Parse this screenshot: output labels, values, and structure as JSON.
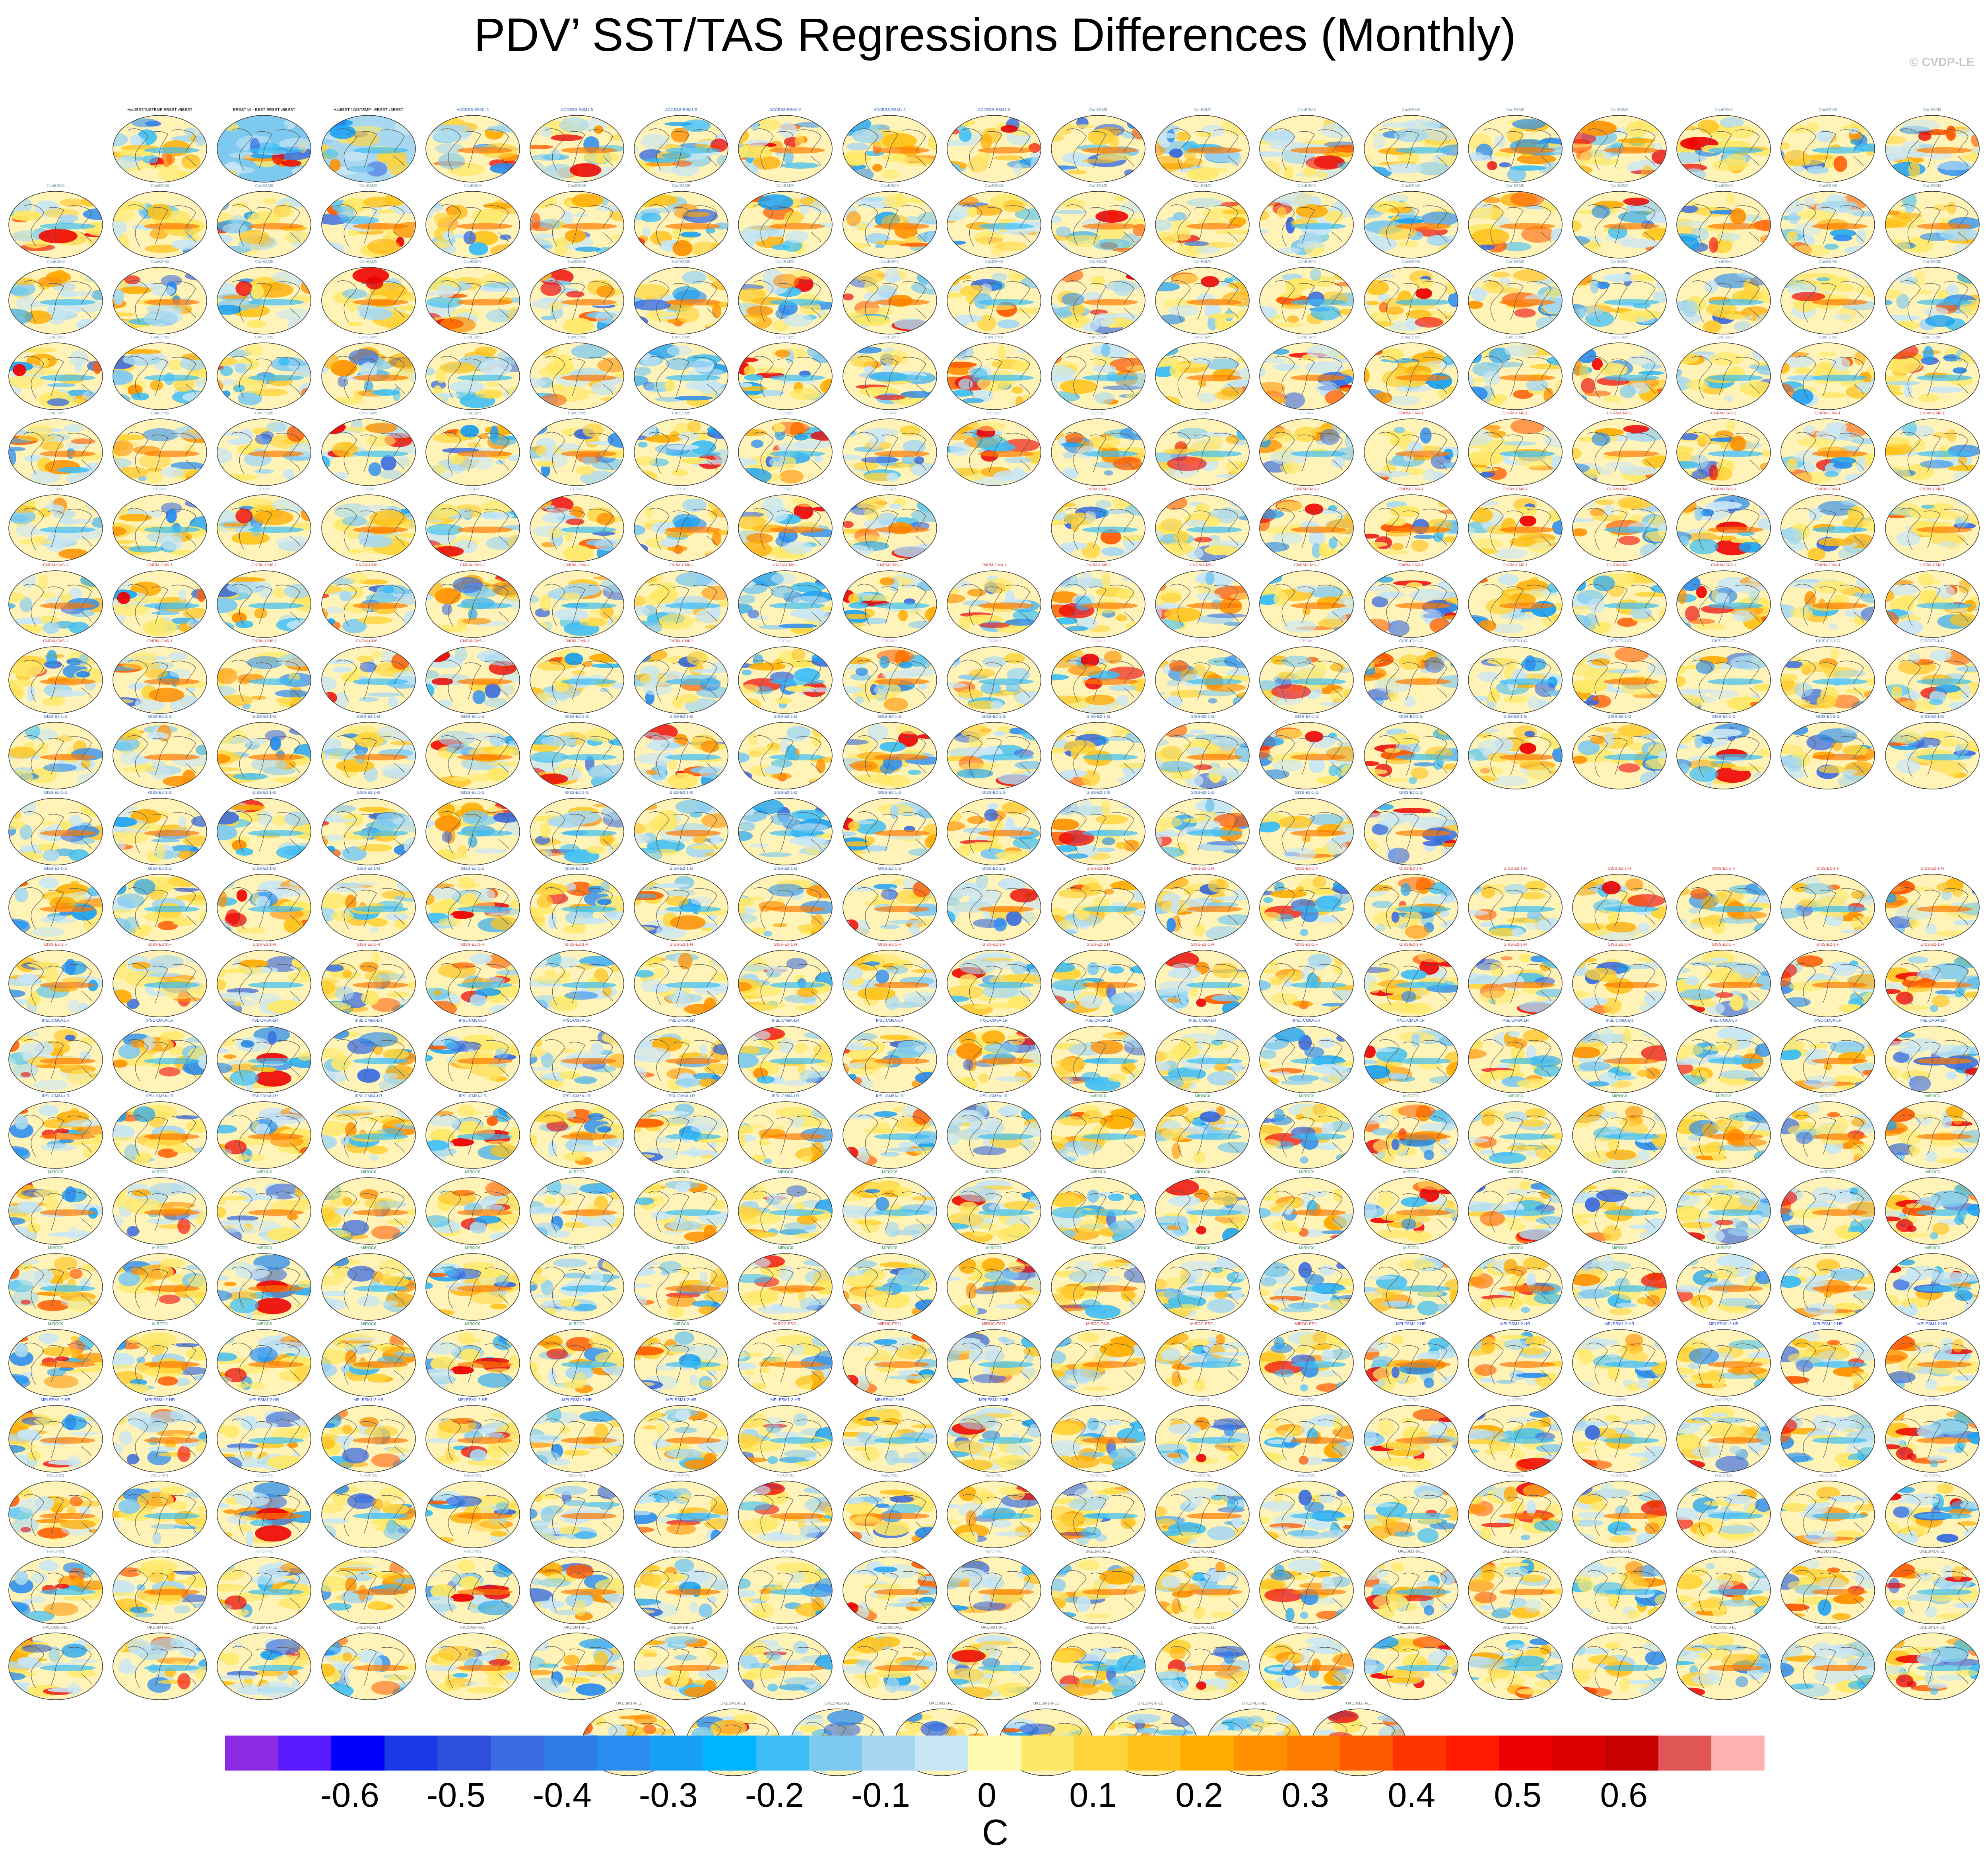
{
  "title": "PDV’ SST/TAS Regressions Differences (Monthly)",
  "copyright": "© CVDP-LE",
  "units": "C",
  "colorbar": {
    "labels": [
      "-0.6",
      "-0.5",
      "-0.4",
      "-0.3",
      "-0.2",
      "-0.1",
      "0",
      "0.1",
      "0.2",
      "0.3",
      "0.4",
      "0.5",
      "0.6"
    ],
    "colors": [
      "#8a2be2",
      "#5a1aff",
      "#0000ff",
      "#1a3ae6",
      "#2e4fd9",
      "#3a6be0",
      "#2f7be6",
      "#2a8cf0",
      "#18a0f5",
      "#00b4ff",
      "#3cbdf5",
      "#7ec9ef",
      "#a8d8f0",
      "#c8e6f5",
      "#fffbb0",
      "#ffe866",
      "#ffd43b",
      "#ffc21a",
      "#ffab00",
      "#ff9100",
      "#ff7a00",
      "#ff5a00",
      "#ff3300",
      "#ff1a00",
      "#ee0000",
      "#dd0000",
      "#c80000",
      "#e05555",
      "#ffb0b0"
    ]
  },
  "panels": {
    "row_counts": [
      18,
      19,
      19,
      19,
      19,
      19,
      19,
      19,
      19,
      14,
      19,
      19,
      19,
      19,
      19,
      19,
      19,
      19,
      19,
      19,
      19,
      8
    ],
    "gaps": {
      "5": [
        9
      ],
      "9": [
        14,
        15,
        16,
        17,
        18
      ]
    },
    "special_first_row": [
      "HadISST/GISTEMP ERSST v5BEST",
      "ERSST v5 - BEST ERSST v5BEST",
      "HadISST / GISTEMP - ERSST v5BEST"
    ],
    "model_groups": [
      {
        "name": "ACCESS-ESM1-5",
        "color": "#3a6ab8",
        "rows": [
          0
        ]
      },
      {
        "name": "CanESM5",
        "color": "#7a9aa8",
        "rows": [
          0,
          1,
          2,
          3,
          4
        ]
      },
      {
        "name": "CESM1",
        "color": "#8fb2c4",
        "rows": [
          4,
          5
        ]
      },
      {
        "name": "CNRM-CM6-1",
        "color": "#d03a3a",
        "rows": [
          4,
          5,
          6,
          7
        ]
      },
      {
        "name": "E3SMv1",
        "color": "#c8a8d8",
        "rows": [
          7
        ]
      },
      {
        "name": "GISS-E2-1-G",
        "color": "#3a6aa8",
        "rows": [
          7,
          8,
          9,
          10
        ]
      },
      {
        "name": "GISS-E2-1-H",
        "color": "#d84a4a",
        "rows": [
          10,
          11
        ]
      },
      {
        "name": "IPSL-CM6A-LR",
        "color": "#2a5ab0",
        "rows": [
          12,
          13
        ]
      },
      {
        "name": "MIROC6",
        "color": "#2a8a4a",
        "rows": [
          13,
          14,
          15,
          16
        ]
      },
      {
        "name": "MIROC-ES2L",
        "color": "#c83030",
        "rows": [
          16
        ]
      },
      {
        "name": "MPI-ESM1-2-HR",
        "color": "#1a3ad8",
        "rows": [
          16,
          17
        ]
      },
      {
        "name": "NorCPM1",
        "color": "#9ab0c8",
        "rows": [
          17,
          18,
          19
        ]
      },
      {
        "name": "UKESM1-0-LL",
        "color": "#6a6a6a",
        "rows": [
          19,
          20,
          21
        ]
      }
    ]
  }
}
